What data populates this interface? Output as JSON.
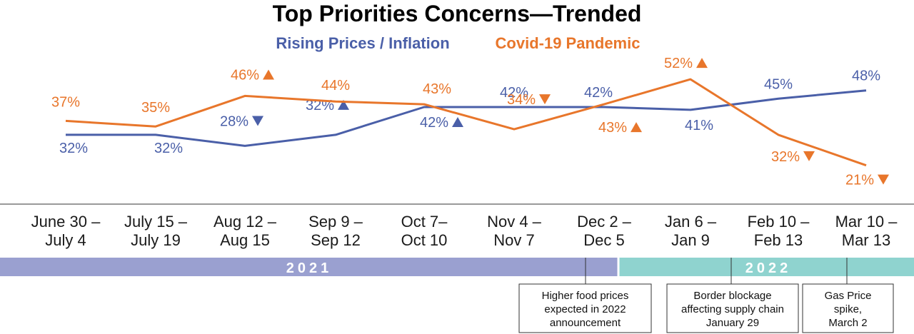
{
  "chart_data": {
    "type": "line",
    "title": "Top Priorities Concerns—Trended",
    "categories": [
      [
        "June 30 –",
        "July 4"
      ],
      [
        "July 15 –",
        "July 19"
      ],
      [
        "Aug 12 –",
        "Aug 15"
      ],
      [
        "Sep 9 –",
        "Sep 12"
      ],
      [
        "Oct 7–",
        "Oct 10"
      ],
      [
        "Nov 4 –",
        "Nov 7"
      ],
      [
        "Dec 2 –",
        "Dec 5"
      ],
      [
        "Jan 6 –",
        "Jan 9"
      ],
      [
        "Feb 10 –",
        "Feb 13"
      ],
      [
        "Mar 10 –",
        "Mar 13"
      ]
    ],
    "series": [
      {
        "name": "Rising Prices / Inflation",
        "color": "#4a5fa8",
        "values": [
          32,
          32,
          28,
          32,
          42,
          42,
          42,
          41,
          45,
          48
        ],
        "labels": [
          "32%",
          "32%",
          "28%",
          "32%",
          "42%",
          "42%",
          "42%",
          "41%",
          "45%",
          "48%"
        ],
        "arrows": [
          "",
          "",
          "down",
          "up",
          "up",
          "",
          "",
          "",
          "",
          ""
        ]
      },
      {
        "name": "Covid-19 Pandemic",
        "color": "#e8762b",
        "values": [
          37,
          35,
          46,
          44,
          43,
          34,
          43,
          52,
          32,
          21
        ],
        "labels": [
          "37%",
          "35%",
          "46%",
          "44%",
          "43%",
          "34%",
          "43%",
          "52%",
          "32%",
          "21%"
        ],
        "arrows": [
          "",
          "",
          "up",
          "",
          "",
          "down",
          "up",
          "up",
          "down",
          "down"
        ]
      }
    ],
    "ylim": [
      15,
      60
    ],
    "years": [
      {
        "label": "2021",
        "color": "#9aa0d0"
      },
      {
        "label": "2022",
        "color": "#8fd3cf"
      }
    ],
    "annotations": [
      {
        "lines": [
          "Higher food prices",
          "expected in 2022",
          "announcement"
        ]
      },
      {
        "lines": [
          "Border blockage",
          "affecting supply chain",
          "January 29"
        ]
      },
      {
        "lines": [
          "Gas Price",
          "spike,",
          "March 2"
        ]
      }
    ]
  }
}
